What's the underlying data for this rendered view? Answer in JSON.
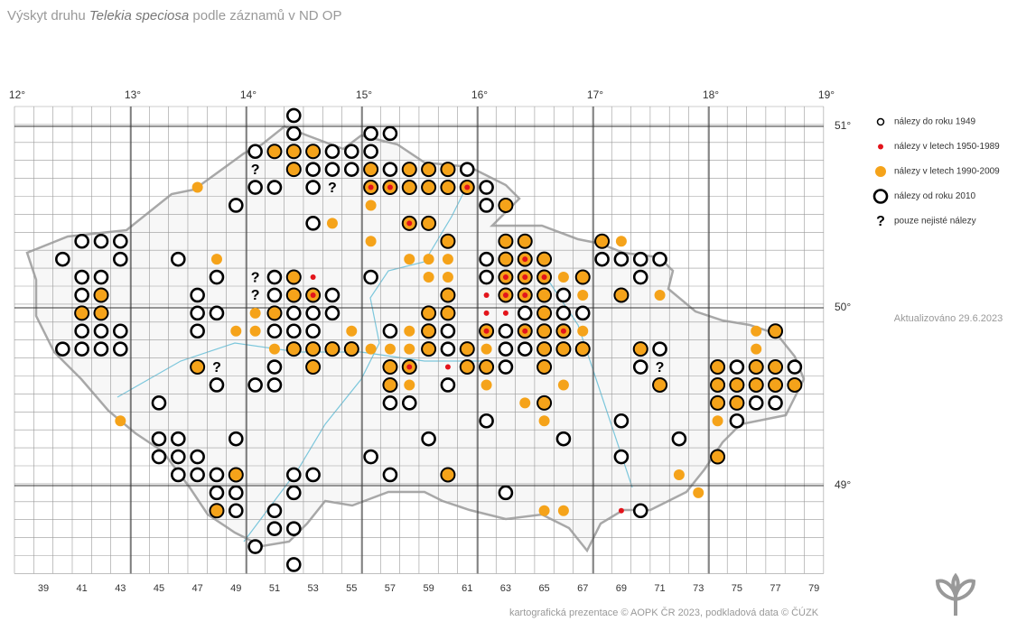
{
  "header": {
    "title_start": "Výskyt druhu ",
    "title_species": "Telekia speciosa",
    "title_end": " podle záznamů v ND OP"
  },
  "map": {
    "longitude_labels": [
      "12°",
      "13°",
      "14°",
      "15°",
      "16°",
      "17°",
      "18°",
      "19°"
    ],
    "latitude_labels": [
      "51°",
      "50°",
      "49°"
    ],
    "column_labels": [
      39,
      41,
      43,
      45,
      47,
      49,
      51,
      53,
      55,
      57,
      59,
      61,
      63,
      65,
      67,
      69,
      71,
      73,
      75,
      77,
      79
    ]
  },
  "legend": [
    {
      "label": "nálezy do roku 1949"
    },
    {
      "label": "nálezy v letech 1950-1989"
    },
    {
      "label": "nálezy v letech 1990-2009"
    },
    {
      "label": "nálezy od roku 2010"
    },
    {
      "label": "pouze nejisté nálezy",
      "symbol": "?"
    }
  ],
  "updated": "Aktualizováno 29.6.2023",
  "credit": "kartografická prezentace © AOPK ČR 2023, podkladová data © ČÚZK"
}
